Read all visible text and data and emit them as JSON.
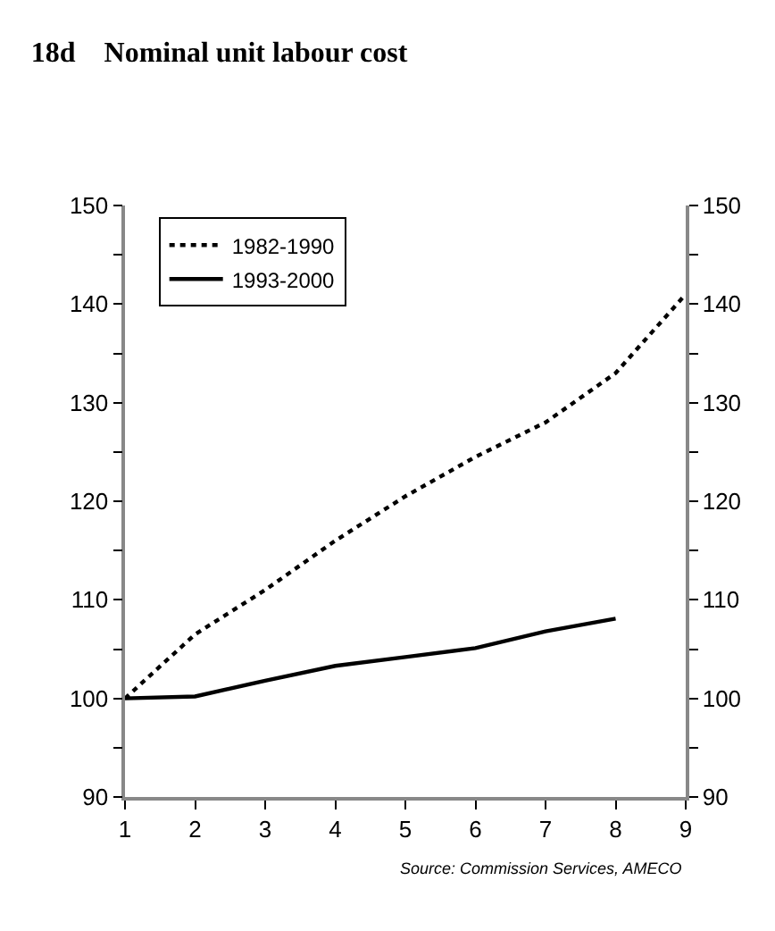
{
  "chart_data": {
    "type": "line",
    "title": "18d    Nominal unit labour cost",
    "x": [
      1,
      2,
      3,
      4,
      5,
      6,
      7,
      8,
      9
    ],
    "series": [
      {
        "name": "1982-1990",
        "color": "#000000",
        "line_style": "dotted",
        "values": [
          100,
          106.5,
          111,
          116,
          120.5,
          124.5,
          128,
          133,
          141
        ]
      },
      {
        "name": "1993-2000",
        "color": "#000000",
        "line_style": "solid",
        "values": [
          100,
          100.2,
          101.8,
          103.3,
          104.2,
          105.1,
          106.8,
          108.1,
          null
        ]
      }
    ],
    "xlim": [
      1,
      9
    ],
    "xticks": [
      1,
      2,
      3,
      4,
      5,
      6,
      7,
      8,
      9
    ],
    "ylim": [
      90,
      150
    ],
    "yticks": [
      90,
      {
        "value": 95,
        "label": null
      },
      100,
      {
        "value": 105,
        "label": null
      },
      110,
      {
        "value": 115,
        "label": null
      },
      120,
      {
        "value": 125,
        "label": null
      },
      130,
      {
        "value": 135,
        "label": null
      },
      140,
      {
        "value": 145,
        "label": null
      },
      150
    ],
    "y2lim": [
      90,
      150
    ],
    "y2ticks": [
      90,
      {
        "value": 95,
        "label": null
      },
      100,
      {
        "value": 105,
        "label": null
      },
      110,
      {
        "value": 115,
        "label": null
      },
      120,
      {
        "value": 125,
        "label": null
      },
      130,
      {
        "value": 135,
        "label": null
      },
      140,
      {
        "value": 145,
        "label": null
      },
      150
    ],
    "annotations": [
      "Source: Commission Services, AMECO"
    ],
    "legend": "top left",
    "marker": "none"
  }
}
